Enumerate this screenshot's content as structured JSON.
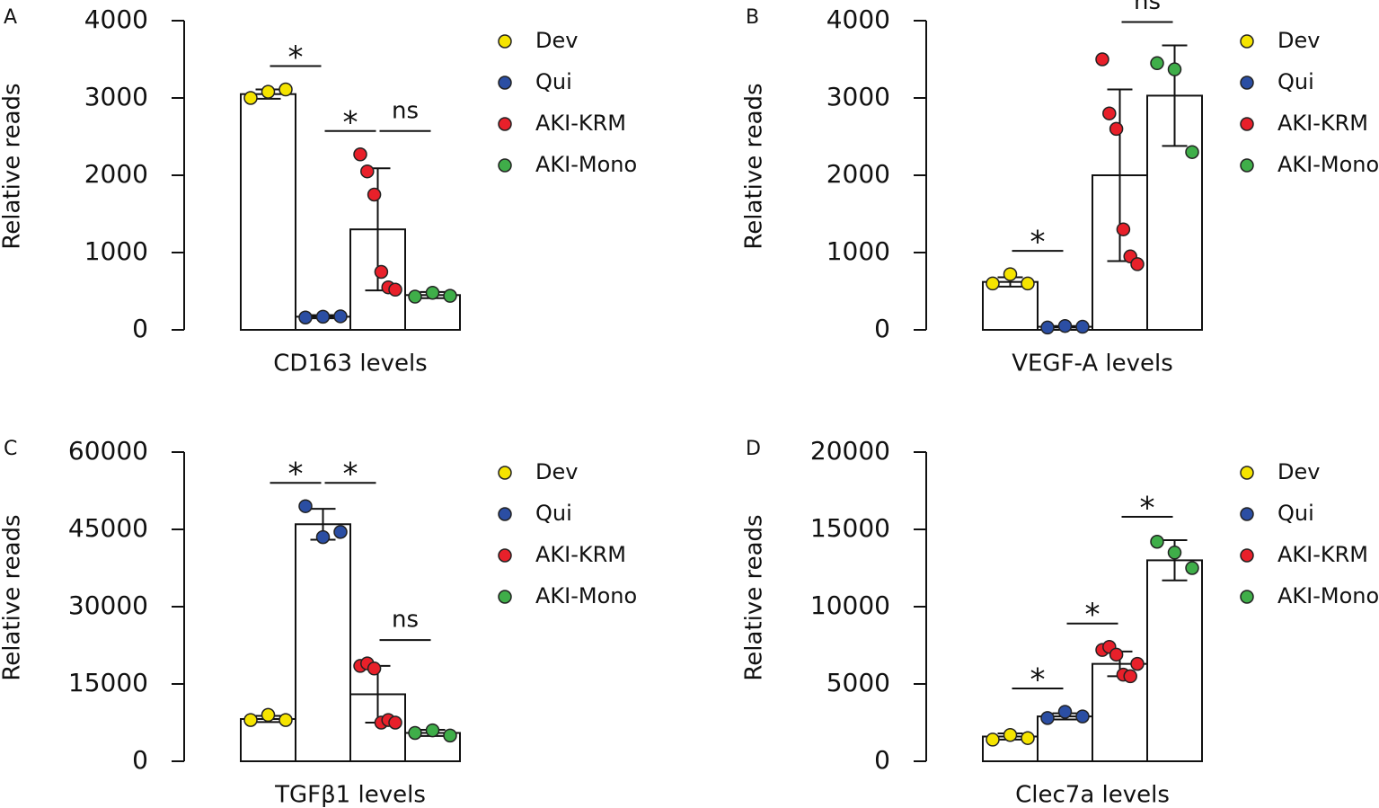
{
  "chart_data": [
    {
      "type": "bar",
      "panel": "A",
      "ylabel": "Relative reads",
      "xlabel": "CD163 levels",
      "ylim": [
        0,
        4000
      ],
      "yticks": [
        0,
        1000,
        2000,
        3000,
        4000
      ],
      "series": [
        {
          "name": "Dev",
          "color": "#f5e400",
          "value": 3050,
          "error": 60,
          "points": [
            3000,
            3080,
            3110
          ]
        },
        {
          "name": "Qui",
          "color": "#2b4ea3",
          "value": 170,
          "error": 20,
          "points": [
            160,
            170,
            175
          ]
        },
        {
          "name": "AKI-KRM",
          "color": "#e8202a",
          "value": 1300,
          "error": 790,
          "points": [
            2270,
            2050,
            1750,
            750,
            550,
            520
          ]
        },
        {
          "name": "AKI-Mono",
          "color": "#3fae49",
          "value": 450,
          "error": 40,
          "points": [
            430,
            480,
            440
          ]
        }
      ],
      "comparisons": [
        {
          "label": "*",
          "groups": [
            "Dev",
            "Qui"
          ]
        },
        {
          "label": "*",
          "groups": [
            "Qui",
            "AKI-KRM"
          ]
        },
        {
          "label": "ns",
          "groups": [
            "AKI-KRM",
            "AKI-Mono"
          ]
        }
      ]
    },
    {
      "type": "bar",
      "panel": "B",
      "ylabel": "Relative reads",
      "xlabel": "VEGF-A levels",
      "ylim": [
        0,
        4000
      ],
      "yticks": [
        0,
        1000,
        2000,
        3000,
        4000
      ],
      "series": [
        {
          "name": "Dev",
          "color": "#f5e400",
          "value": 620,
          "error": 60,
          "points": [
            600,
            720,
            600
          ]
        },
        {
          "name": "Qui",
          "color": "#2b4ea3",
          "value": 40,
          "error": 10,
          "points": [
            30,
            50,
            40
          ]
        },
        {
          "name": "AKI-KRM",
          "color": "#e8202a",
          "value": 2000,
          "error": 1110,
          "points": [
            3500,
            2800,
            2600,
            1300,
            950,
            850
          ]
        },
        {
          "name": "AKI-Mono",
          "color": "#3fae49",
          "value": 3030,
          "error": 650,
          "points": [
            3450,
            3370,
            2300
          ]
        }
      ],
      "comparisons": [
        {
          "label": "*",
          "groups": [
            "Dev",
            "Qui"
          ]
        },
        {
          "label": "ns",
          "groups": [
            "AKI-KRM",
            "AKI-Mono"
          ]
        }
      ]
    },
    {
      "type": "bar",
      "panel": "C",
      "ylabel": "Relative reads",
      "xlabel": "TGFβ1 levels",
      "ylim": [
        0,
        60000
      ],
      "yticks": [
        0,
        15000,
        30000,
        45000,
        60000
      ],
      "series": [
        {
          "name": "Dev",
          "color": "#f5e400",
          "value": 8200,
          "error": 600,
          "points": [
            8000,
            9000,
            8000
          ]
        },
        {
          "name": "Qui",
          "color": "#2b4ea3",
          "value": 46000,
          "error": 3000,
          "points": [
            49500,
            43500,
            44500
          ]
        },
        {
          "name": "AKI-KRM",
          "color": "#e8202a",
          "value": 13000,
          "error": 5500,
          "points": [
            18500,
            19000,
            18000,
            7500,
            8000,
            7500
          ]
        },
        {
          "name": "AKI-Mono",
          "color": "#3fae49",
          "value": 5500,
          "error": 600,
          "points": [
            5500,
            6000,
            5000
          ]
        }
      ],
      "comparisons": [
        {
          "label": "*",
          "groups": [
            "Dev",
            "Qui"
          ]
        },
        {
          "label": "*",
          "groups": [
            "Qui",
            "AKI-KRM"
          ]
        },
        {
          "label": "ns",
          "groups": [
            "AKI-KRM",
            "AKI-Mono"
          ]
        }
      ]
    },
    {
      "type": "bar",
      "panel": "D",
      "ylabel": "Relative reads",
      "xlabel": "Clec7a levels",
      "ylim": [
        0,
        20000
      ],
      "yticks": [
        0,
        5000,
        10000,
        15000,
        20000
      ],
      "series": [
        {
          "name": "Dev",
          "color": "#f5e400",
          "value": 1600,
          "error": 200,
          "points": [
            1400,
            1700,
            1500
          ]
        },
        {
          "name": "Qui",
          "color": "#2b4ea3",
          "value": 2900,
          "error": 200,
          "points": [
            2800,
            3200,
            2900
          ]
        },
        {
          "name": "AKI-KRM",
          "color": "#e8202a",
          "value": 6300,
          "error": 800,
          "points": [
            7200,
            7400,
            6900,
            5600,
            5500,
            6300
          ]
        },
        {
          "name": "AKI-Mono",
          "color": "#3fae49",
          "value": 13000,
          "error": 1300,
          "points": [
            14200,
            13500,
            12500
          ]
        }
      ],
      "comparisons": [
        {
          "label": "*",
          "groups": [
            "Dev",
            "Qui"
          ]
        },
        {
          "label": "*",
          "groups": [
            "Qui",
            "AKI-KRM"
          ]
        },
        {
          "label": "*",
          "groups": [
            "AKI-KRM",
            "AKI-Mono"
          ]
        }
      ]
    }
  ]
}
